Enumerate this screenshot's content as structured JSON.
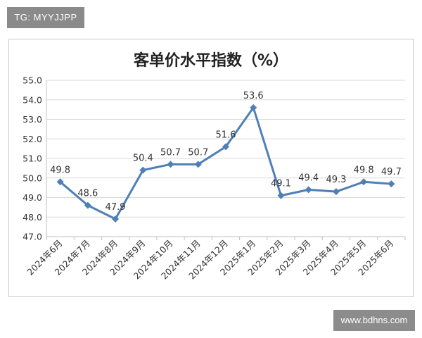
{
  "tag_label": "TG: MYYJJPP",
  "watermark_label": "www.bdhns.com",
  "chart_data": {
    "type": "line",
    "title": "客单价水平指数（%）",
    "categories": [
      "2024年6月",
      "2024年7月",
      "2024年8月",
      "2024年9月",
      "2024年10月",
      "2024年11月",
      "2024年12月",
      "2025年1月",
      "2025年2月",
      "2025年3月",
      "2025年4月",
      "2025年5月",
      "2025年6月"
    ],
    "series": [
      {
        "values": [
          49.8,
          48.6,
          47.9,
          50.4,
          50.7,
          50.7,
          51.6,
          53.6,
          49.1,
          49.4,
          49.3,
          49.8,
          49.7
        ]
      }
    ],
    "data_labels": [
      "49.8",
      "48.6",
      "47.9",
      "50.4",
      "50.7",
      "50.7",
      "51.6",
      "53.6",
      "49.1",
      "49.4",
      "49.3",
      "49.8",
      "49.7"
    ],
    "ylim": [
      47.0,
      55.0
    ],
    "yticks": [
      "47.0",
      "48.0",
      "49.0",
      "50.0",
      "51.0",
      "52.0",
      "53.0",
      "54.0",
      "55.0"
    ],
    "grid": "horizontal",
    "legend": "none",
    "line_color": "#4f7fb7",
    "grid_color": "#d9d9d9",
    "axis_color": "#bfbfbf",
    "text_color": "#333333"
  }
}
